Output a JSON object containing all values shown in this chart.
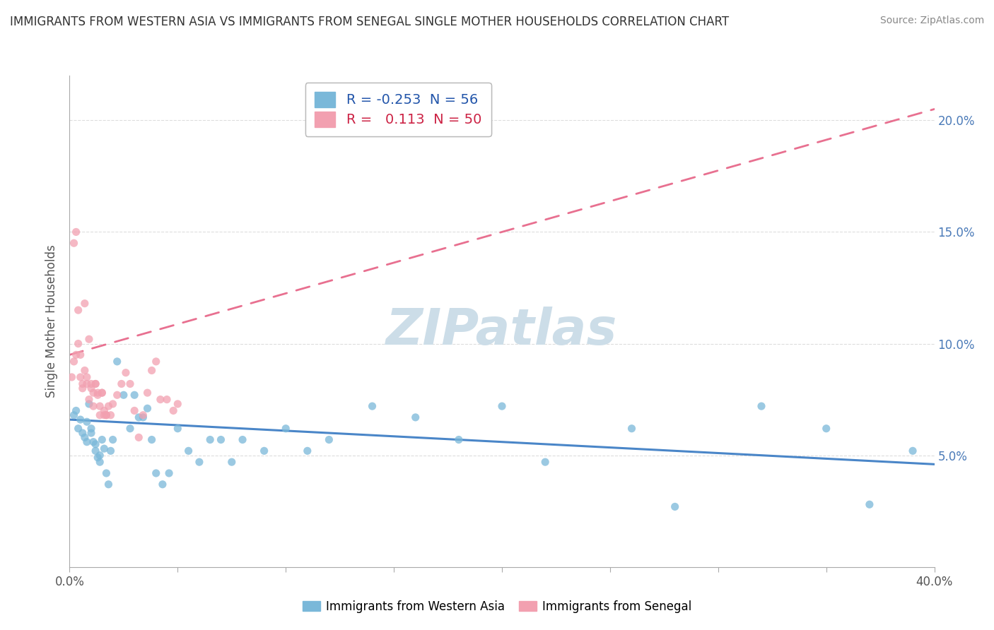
{
  "title": "IMMIGRANTS FROM WESTERN ASIA VS IMMIGRANTS FROM SENEGAL SINGLE MOTHER HOUSEHOLDS CORRELATION CHART",
  "source": "Source: ZipAtlas.com",
  "ylabel": "Single Mother Households",
  "xlim": [
    0.0,
    0.4
  ],
  "ylim": [
    0.0,
    0.22
  ],
  "legend_r_blue": "-0.253",
  "legend_n_blue": "56",
  "legend_r_pink": "0.113",
  "legend_n_pink": "50",
  "blue_color": "#7ab8d9",
  "pink_color": "#f2a0b0",
  "trendline_blue_color": "#4a86c8",
  "trendline_pink_color": "#e87090",
  "trendline_pink_dashed": true,
  "watermark_text": "ZIPatlas",
  "watermark_color": "#ccdde8",
  "background_color": "#ffffff",
  "plot_bg_color": "#ffffff",
  "grid_color": "#dddddd",
  "right_axis_color": "#4a7ab8",
  "blue_scatter_x": [
    0.002,
    0.003,
    0.004,
    0.005,
    0.006,
    0.007,
    0.008,
    0.009,
    0.01,
    0.011,
    0.012,
    0.013,
    0.014,
    0.015,
    0.016,
    0.017,
    0.018,
    0.019,
    0.02,
    0.022,
    0.025,
    0.028,
    0.03,
    0.032,
    0.034,
    0.036,
    0.038,
    0.04,
    0.043,
    0.046,
    0.05,
    0.055,
    0.06,
    0.065,
    0.07,
    0.075,
    0.08,
    0.09,
    0.1,
    0.11,
    0.12,
    0.14,
    0.16,
    0.18,
    0.2,
    0.22,
    0.26,
    0.28,
    0.32,
    0.35,
    0.37,
    0.39,
    0.008,
    0.01,
    0.012,
    0.014
  ],
  "blue_scatter_y": [
    0.068,
    0.07,
    0.062,
    0.066,
    0.06,
    0.058,
    0.056,
    0.073,
    0.062,
    0.056,
    0.052,
    0.049,
    0.047,
    0.057,
    0.053,
    0.042,
    0.037,
    0.052,
    0.057,
    0.092,
    0.077,
    0.062,
    0.077,
    0.067,
    0.067,
    0.071,
    0.057,
    0.042,
    0.037,
    0.042,
    0.062,
    0.052,
    0.047,
    0.057,
    0.057,
    0.047,
    0.057,
    0.052,
    0.062,
    0.052,
    0.057,
    0.072,
    0.067,
    0.057,
    0.072,
    0.047,
    0.062,
    0.027,
    0.072,
    0.062,
    0.028,
    0.052,
    0.065,
    0.06,
    0.055,
    0.05
  ],
  "pink_scatter_x": [
    0.001,
    0.002,
    0.003,
    0.004,
    0.005,
    0.006,
    0.007,
    0.008,
    0.009,
    0.01,
    0.011,
    0.012,
    0.013,
    0.014,
    0.015,
    0.016,
    0.017,
    0.018,
    0.019,
    0.02,
    0.022,
    0.024,
    0.026,
    0.028,
    0.03,
    0.032,
    0.034,
    0.036,
    0.038,
    0.04,
    0.042,
    0.045,
    0.048,
    0.05,
    0.002,
    0.003,
    0.004,
    0.005,
    0.006,
    0.007,
    0.008,
    0.009,
    0.01,
    0.011,
    0.012,
    0.013,
    0.014,
    0.015,
    0.016,
    0.017
  ],
  "pink_scatter_y": [
    0.085,
    0.092,
    0.095,
    0.1,
    0.085,
    0.08,
    0.088,
    0.082,
    0.075,
    0.08,
    0.078,
    0.082,
    0.077,
    0.072,
    0.078,
    0.07,
    0.068,
    0.072,
    0.068,
    0.073,
    0.077,
    0.082,
    0.087,
    0.082,
    0.07,
    0.058,
    0.068,
    0.078,
    0.088,
    0.092,
    0.075,
    0.075,
    0.07,
    0.073,
    0.145,
    0.15,
    0.115,
    0.095,
    0.082,
    0.118,
    0.085,
    0.102,
    0.082,
    0.072,
    0.082,
    0.078,
    0.068,
    0.078,
    0.068,
    0.068
  ],
  "blue_trendline_x0": 0.0,
  "blue_trendline_x1": 0.4,
  "blue_trendline_y0": 0.066,
  "blue_trendline_y1": 0.046,
  "pink_trendline_x0": 0.0,
  "pink_trendline_x1": 0.4,
  "pink_trendline_y0": 0.095,
  "pink_trendline_y1": 0.205
}
